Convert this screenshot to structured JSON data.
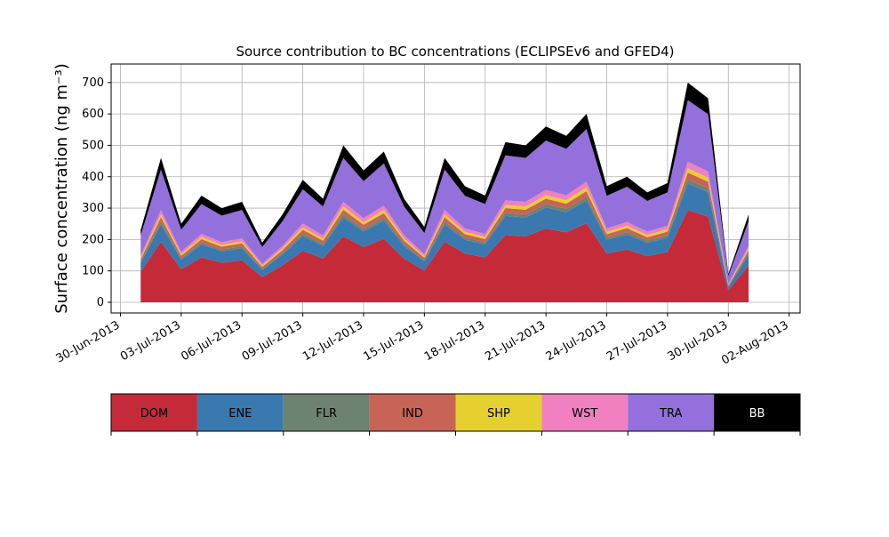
{
  "chart_data": {
    "type": "stacked_area",
    "title": "Source contribution to BC concentrations (ECLIPSEv6 and GFED4)",
    "y_label": "Surface concentration (ng m⁻³)",
    "x": [
      "2013-07-01",
      "2013-07-02",
      "2013-07-03",
      "2013-07-04",
      "2013-07-05",
      "2013-07-06",
      "2013-07-07",
      "2013-07-08",
      "2013-07-09",
      "2013-07-10",
      "2013-07-11",
      "2013-07-12",
      "2013-07-13",
      "2013-07-14",
      "2013-07-15",
      "2013-07-16",
      "2013-07-17",
      "2013-07-18",
      "2013-07-19",
      "2013-07-20",
      "2013-07-21",
      "2013-07-22",
      "2013-07-23",
      "2013-07-24",
      "2013-07-25",
      "2013-07-26",
      "2013-07-27",
      "2013-07-28",
      "2013-07-29",
      "2013-07-30",
      "2013-07-31"
    ],
    "series": [
      {
        "name": "DOM",
        "color": "#c42a38",
        "values": [
          97,
          193,
          105,
          143,
          126,
          134,
          80,
          118,
          164,
          139,
          210,
          176,
          202,
          139,
          101,
          193,
          155,
          143,
          214,
          210,
          235,
          223,
          252,
          155,
          168,
          147,
          160,
          294,
          273,
          38,
          118
        ]
      },
      {
        "name": "ENE",
        "color": "#3a78b0",
        "values": [
          28,
          55,
          30,
          41,
          36,
          38,
          23,
          34,
          47,
          40,
          60,
          50,
          58,
          40,
          29,
          55,
          44,
          41,
          61,
          60,
          67,
          64,
          72,
          44,
          48,
          42,
          46,
          84,
          78,
          11,
          34
        ]
      },
      {
        "name": "FLR",
        "color": "#6d8270",
        "values": [
          5,
          9,
          5,
          7,
          6,
          6,
          4,
          6,
          8,
          7,
          10,
          8,
          10,
          7,
          5,
          9,
          7,
          7,
          10,
          10,
          11,
          11,
          12,
          7,
          8,
          7,
          8,
          14,
          13,
          2,
          6
        ]
      },
      {
        "name": "IND",
        "color": "#c76456",
        "values": [
          7,
          14,
          8,
          10,
          9,
          10,
          6,
          8,
          12,
          10,
          15,
          13,
          14,
          10,
          7,
          14,
          11,
          10,
          15,
          15,
          17,
          16,
          18,
          11,
          12,
          11,
          11,
          21,
          20,
          3,
          8
        ]
      },
      {
        "name": "SHP",
        "color": "#e6d030",
        "values": [
          5,
          9,
          5,
          7,
          6,
          6,
          4,
          6,
          8,
          7,
          10,
          8,
          10,
          7,
          5,
          9,
          7,
          7,
          10,
          10,
          11,
          11,
          12,
          7,
          8,
          7,
          8,
          14,
          13,
          2,
          6
        ]
      },
      {
        "name": "WST",
        "color": "#f080c0",
        "values": [
          7,
          14,
          8,
          10,
          9,
          10,
          6,
          8,
          12,
          10,
          15,
          13,
          14,
          10,
          7,
          14,
          11,
          10,
          15,
          15,
          17,
          16,
          18,
          11,
          12,
          11,
          11,
          21,
          20,
          3,
          8
        ]
      },
      {
        "name": "TRA",
        "color": "#9370db",
        "values": [
          64,
          129,
          70,
          95,
          84,
          90,
          53,
          78,
          109,
          92,
          140,
          118,
          134,
          92,
          67,
          129,
          104,
          95,
          143,
          140,
          157,
          148,
          168,
          104,
          112,
          98,
          106,
          196,
          182,
          25,
          78
        ]
      },
      {
        "name": "BB",
        "color": "#000000",
        "values": [
          17,
          37,
          19,
          27,
          24,
          26,
          14,
          22,
          30,
          25,
          40,
          34,
          38,
          25,
          19,
          37,
          31,
          27,
          42,
          40,
          45,
          41,
          48,
          31,
          32,
          27,
          30,
          56,
          51,
          6,
          22
        ]
      }
    ],
    "xlim": [
      "2013-06-29T13:00",
      "2013-08-02T13:00"
    ],
    "xticks": [
      {
        "value": "2013-06-30",
        "label": "30-Jun-2013"
      },
      {
        "value": "2013-07-03",
        "label": "03-Jul-2013"
      },
      {
        "value": "2013-07-06",
        "label": "06-Jul-2013"
      },
      {
        "value": "2013-07-09",
        "label": "09-Jul-2013"
      },
      {
        "value": "2013-07-12",
        "label": "12-Jul-2013"
      },
      {
        "value": "2013-07-15",
        "label": "15-Jul-2013"
      },
      {
        "value": "2013-07-18",
        "label": "18-Jul-2013"
      },
      {
        "value": "2013-07-21",
        "label": "21-Jul-2013"
      },
      {
        "value": "2013-07-24",
        "label": "24-Jul-2013"
      },
      {
        "value": "2013-07-27",
        "label": "27-Jul-2013"
      },
      {
        "value": "2013-07-30",
        "label": "30-Jul-2013"
      },
      {
        "value": "2013-08-02",
        "label": "02-Aug-2013"
      }
    ],
    "ylim": [
      -34,
      759
    ],
    "yticks": [
      0,
      100,
      200,
      300,
      400,
      500,
      600,
      700
    ],
    "grid": true
  }
}
